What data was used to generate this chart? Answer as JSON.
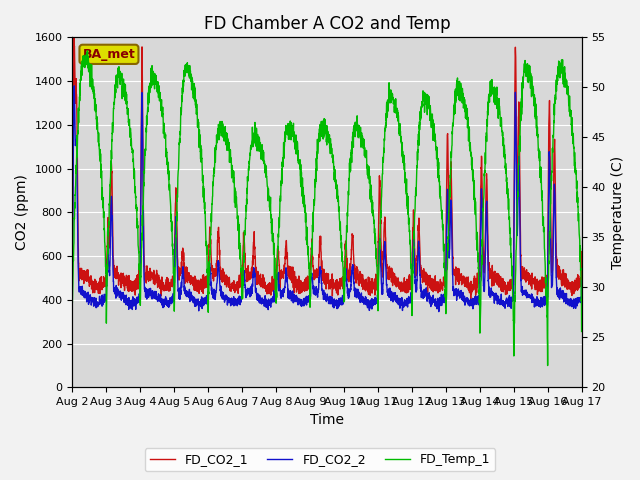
{
  "title": "FD Chamber A CO2 and Temp",
  "xlabel": "Time",
  "ylabel_left": "CO2 (ppm)",
  "ylabel_right": "Temperature (C)",
  "ylim_left": [
    0,
    1600
  ],
  "ylim_right": [
    20,
    55
  ],
  "xlim": [
    0,
    15
  ],
  "xtick_labels": [
    "Aug 2",
    "Aug 3",
    "Aug 4",
    "Aug 5",
    "Aug 6",
    "Aug 7",
    "Aug 8",
    "Aug 9",
    "Aug 10",
    "Aug 11",
    "Aug 12",
    "Aug 13",
    "Aug 14",
    "Aug 15",
    "Aug 16",
    "Aug 17"
  ],
  "color_co2_1": "#cc1111",
  "color_co2_2": "#1111cc",
  "color_temp": "#00bb00",
  "fig_bg_color": "#f2f2f2",
  "plot_bg_color": "#d8d8d8",
  "label_co2_1": "FD_CO2_1",
  "label_co2_2": "FD_CO2_2",
  "label_temp": "FD_Temp_1",
  "annotation_text": "BA_met",
  "title_fontsize": 12,
  "axis_fontsize": 10,
  "tick_fontsize": 8,
  "linewidth": 1.0
}
